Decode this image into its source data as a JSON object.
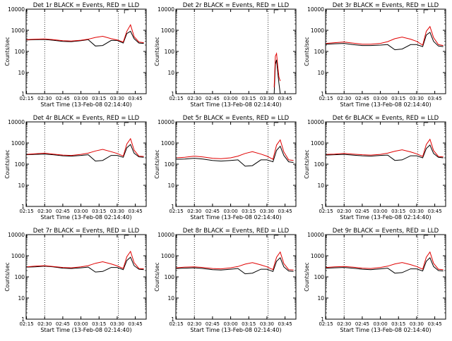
{
  "figure": {
    "xlabel": "Start Time (13-Feb-08 02:14:40)",
    "ylabel": "Counts/sec",
    "x_ticks": [
      "02:15",
      "02:30",
      "02:45",
      "03:00",
      "03:15",
      "03:30",
      "03:45"
    ],
    "y_ticks": [
      "1",
      "10",
      "100",
      "1000",
      "10000"
    ],
    "series_colors": {
      "events": "#000000",
      "lld": "#e00000"
    }
  },
  "chart_data": [
    {
      "type": "line",
      "title": "Det 1r BLACK = Events, RED = LLD",
      "x": [
        "02:15",
        "02:22",
        "02:30",
        "02:37",
        "02:45",
        "02:52",
        "03:00",
        "03:06",
        "03:12",
        "03:18",
        "03:25",
        "03:30",
        "03:35",
        "03:38",
        "03:41",
        "03:44",
        "03:48",
        "03:52"
      ],
      "series": [
        {
          "name": "Events",
          "values": [
            350,
            360,
            370,
            340,
            300,
            290,
            320,
            360,
            180,
            190,
            330,
            330,
            250,
            700,
            900,
            400,
            250,
            240
          ]
        },
        {
          "name": "LLD",
          "values": [
            360,
            380,
            390,
            360,
            320,
            310,
            340,
            380,
            460,
            520,
            400,
            350,
            280,
            900,
            1800,
            500,
            280,
            260
          ]
        }
      ],
      "ylim": [
        1,
        10000
      ],
      "yscale": "log",
      "xlim": [
        "02:14:40",
        "03:54"
      ]
    },
    {
      "type": "line",
      "title": "Det 2r BLACK = Events, RED = LLD",
      "x": [
        "03:36",
        "03:37",
        "03:38",
        "03:39",
        "03:40",
        "03:41"
      ],
      "series": [
        {
          "name": "Events",
          "values": [
            1,
            25,
            40,
            10,
            3,
            1
          ]
        },
        {
          "name": "LLD",
          "values": [
            2,
            60,
            80,
            20,
            6,
            4
          ]
        }
      ],
      "ylim": [
        1,
        10000
      ],
      "yscale": "log",
      "xlim": [
        "02:14:40",
        "03:54"
      ]
    },
    {
      "type": "line",
      "title": "Det 3r BLACK = Events, RED = LLD",
      "x": [
        "02:15",
        "02:22",
        "02:30",
        "02:37",
        "02:45",
        "02:52",
        "03:00",
        "03:06",
        "03:12",
        "03:18",
        "03:25",
        "03:30",
        "03:35",
        "03:38",
        "03:41",
        "03:44",
        "03:48",
        "03:52"
      ],
      "series": [
        {
          "name": "Events",
          "values": [
            220,
            230,
            240,
            210,
            190,
            190,
            200,
            210,
            120,
            130,
            210,
            210,
            170,
            600,
            800,
            300,
            180,
            170
          ]
        },
        {
          "name": "LLD",
          "values": [
            240,
            260,
            280,
            250,
            220,
            220,
            240,
            290,
            400,
            480,
            380,
            300,
            200,
            900,
            1500,
            450,
            210,
            190
          ]
        }
      ],
      "ylim": [
        1,
        10000
      ],
      "yscale": "log",
      "xlim": [
        "02:14:40",
        "03:54"
      ]
    },
    {
      "type": "line",
      "title": "Det 4r BLACK = Events, RED = LLD",
      "x": [
        "02:15",
        "02:22",
        "02:30",
        "02:37",
        "02:45",
        "02:52",
        "03:00",
        "03:06",
        "03:12",
        "03:18",
        "03:25",
        "03:30",
        "03:35",
        "03:38",
        "03:41",
        "03:44",
        "03:48",
        "03:52"
      ],
      "series": [
        {
          "name": "Events",
          "values": [
            280,
            290,
            300,
            280,
            250,
            240,
            260,
            280,
            140,
            150,
            260,
            260,
            210,
            600,
            850,
            330,
            220,
            210
          ]
        },
        {
          "name": "LLD",
          "values": [
            290,
            310,
            330,
            300,
            270,
            260,
            290,
            330,
            420,
            500,
            390,
            320,
            240,
            900,
            1600,
            460,
            240,
            230
          ]
        }
      ],
      "ylim": [
        1,
        10000
      ],
      "yscale": "log",
      "xlim": [
        "02:14:40",
        "03:54"
      ]
    },
    {
      "type": "line",
      "title": "Det 5r BLACK = Events, RED = LLD",
      "x": [
        "02:15",
        "02:22",
        "02:30",
        "02:37",
        "02:45",
        "02:52",
        "03:00",
        "03:06",
        "03:12",
        "03:18",
        "03:25",
        "03:30",
        "03:35",
        "03:38",
        "03:41",
        "03:44",
        "03:48",
        "03:52"
      ],
      "series": [
        {
          "name": "Events",
          "values": [
            170,
            175,
            190,
            175,
            150,
            140,
            150,
            160,
            80,
            85,
            160,
            160,
            130,
            450,
            700,
            260,
            130,
            120
          ]
        },
        {
          "name": "LLD",
          "values": [
            200,
            210,
            240,
            220,
            190,
            180,
            200,
            240,
            320,
            390,
            300,
            240,
            170,
            800,
            1400,
            380,
            160,
            150
          ]
        }
      ],
      "ylim": [
        1,
        10000
      ],
      "yscale": "log",
      "xlim": [
        "02:14:40",
        "03:54"
      ]
    },
    {
      "type": "line",
      "title": "Det 6r BLACK = Events, RED = LLD",
      "x": [
        "02:15",
        "02:22",
        "02:30",
        "02:37",
        "02:45",
        "02:52",
        "03:00",
        "03:06",
        "03:12",
        "03:18",
        "03:25",
        "03:30",
        "03:35",
        "03:38",
        "03:41",
        "03:44",
        "03:48",
        "03:52"
      ],
      "series": [
        {
          "name": "Events",
          "values": [
            270,
            280,
            290,
            270,
            250,
            240,
            260,
            270,
            150,
            160,
            250,
            250,
            200,
            550,
            800,
            320,
            210,
            200
          ]
        },
        {
          "name": "LLD",
          "values": [
            290,
            300,
            320,
            300,
            280,
            270,
            290,
            330,
            410,
            480,
            380,
            310,
            230,
            850,
            1500,
            440,
            230,
            220
          ]
        }
      ],
      "ylim": [
        1,
        10000
      ],
      "yscale": "log",
      "xlim": [
        "02:14:40",
        "03:54"
      ]
    },
    {
      "type": "line",
      "title": "Det 7r BLACK = Events, RED = LLD",
      "x": [
        "02:15",
        "02:22",
        "02:30",
        "02:37",
        "02:45",
        "02:52",
        "03:00",
        "03:06",
        "03:12",
        "03:18",
        "03:25",
        "03:30",
        "03:35",
        "03:38",
        "03:41",
        "03:44",
        "03:48",
        "03:52"
      ],
      "series": [
        {
          "name": "Events",
          "values": [
            290,
            300,
            320,
            300,
            260,
            250,
            270,
            290,
            170,
            180,
            280,
            280,
            220,
            600,
            850,
            340,
            230,
            220
          ]
        },
        {
          "name": "LLD",
          "values": [
            300,
            320,
            340,
            310,
            280,
            270,
            300,
            340,
            440,
            520,
            410,
            330,
            250,
            900,
            1600,
            470,
            250,
            240
          ]
        }
      ],
      "ylim": [
        1,
        10000
      ],
      "yscale": "log",
      "xlim": [
        "02:14:40",
        "03:54"
      ]
    },
    {
      "type": "line",
      "title": "Det 8r BLACK = Events, RED = LLD",
      "x": [
        "02:15",
        "02:22",
        "02:30",
        "02:37",
        "02:45",
        "02:52",
        "03:00",
        "03:06",
        "03:12",
        "03:18",
        "03:25",
        "03:30",
        "03:35",
        "03:38",
        "03:41",
        "03:44",
        "03:48",
        "03:52"
      ],
      "series": [
        {
          "name": "Events",
          "values": [
            250,
            260,
            270,
            250,
            220,
            210,
            230,
            250,
            140,
            150,
            230,
            230,
            180,
            550,
            800,
            300,
            190,
            180
          ]
        },
        {
          "name": "LLD",
          "values": [
            270,
            290,
            300,
            280,
            250,
            240,
            270,
            310,
            400,
            470,
            370,
            300,
            220,
            850,
            1500,
            430,
            220,
            210
          ]
        }
      ],
      "ylim": [
        1,
        10000
      ],
      "yscale": "log",
      "xlim": [
        "02:14:40",
        "03:54"
      ]
    },
    {
      "type": "line",
      "title": "Det 9r BLACK = Events, RED = LLD",
      "x": [
        "02:15",
        "02:22",
        "02:30",
        "02:37",
        "02:45",
        "02:52",
        "03:00",
        "03:06",
        "03:12",
        "03:18",
        "03:25",
        "03:30",
        "03:35",
        "03:38",
        "03:41",
        "03:44",
        "03:48",
        "03:52"
      ],
      "series": [
        {
          "name": "Events",
          "values": [
            260,
            270,
            280,
            260,
            230,
            220,
            240,
            260,
            150,
            160,
            240,
            240,
            190,
            550,
            800,
            310,
            200,
            190
          ]
        },
        {
          "name": "LLD",
          "values": [
            280,
            300,
            310,
            290,
            260,
            250,
            280,
            320,
            410,
            480,
            380,
            310,
            230,
            850,
            1500,
            440,
            230,
            220
          ]
        }
      ],
      "ylim": [
        1,
        10000
      ],
      "yscale": "log",
      "xlim": [
        "02:14:40",
        "03:54"
      ]
    }
  ]
}
